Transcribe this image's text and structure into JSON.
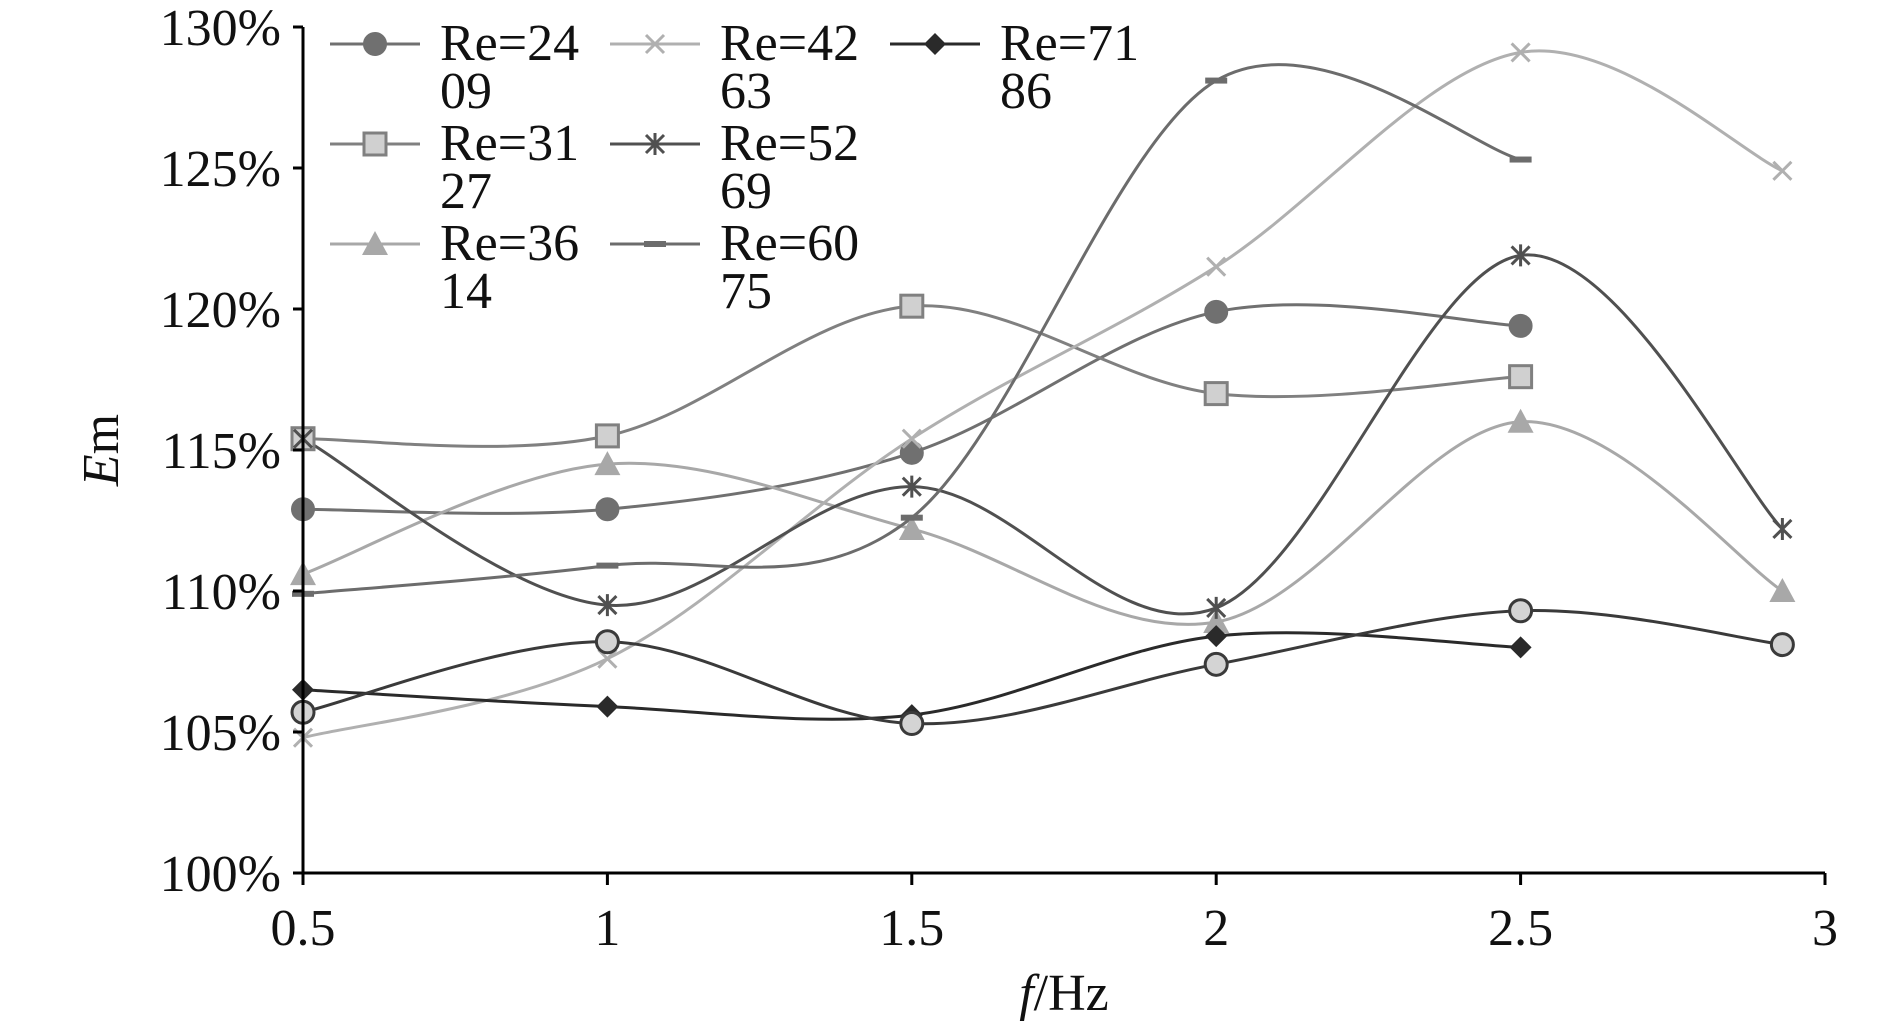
{
  "chart_data": {
    "type": "line",
    "title": "",
    "xlabel_italic": "f",
    "xlabel_rest": "/Hz",
    "ylabel_italic": "E",
    "ylabel_rest": "m",
    "xlim": [
      0.5,
      3
    ],
    "ylim": [
      100,
      130
    ],
    "x_ticks": [
      "0.5",
      "1",
      "1.5",
      "2",
      "2.5",
      "3"
    ],
    "y_ticks": [
      "100%",
      "105%",
      "110%",
      "115%",
      "120%",
      "125%",
      "130%"
    ],
    "legend_position": "top-left",
    "grid": false,
    "series": [
      {
        "name_line1": "Re=24",
        "name_line2": "09",
        "marker": "circle",
        "color": "#707070",
        "points": [
          [
            0.5,
            112.9
          ],
          [
            1,
            112.9
          ],
          [
            1.5,
            114.9
          ],
          [
            2,
            119.9
          ],
          [
            2.5,
            119.4
          ]
        ]
      },
      {
        "name_line1": "Re=31",
        "name_line2": "27",
        "marker": "square",
        "color": "#808080",
        "points": [
          [
            0.5,
            115.4
          ],
          [
            1,
            115.5
          ],
          [
            1.5,
            120.1
          ],
          [
            2,
            117.0
          ],
          [
            2.5,
            117.6
          ]
        ]
      },
      {
        "name_line1": "Re=36",
        "name_line2": "14",
        "marker": "triangle",
        "color": "#a8a8a8",
        "points": [
          [
            0.5,
            110.6
          ],
          [
            1,
            114.5
          ],
          [
            1.5,
            112.2
          ],
          [
            2,
            108.9
          ],
          [
            2.5,
            116.0
          ],
          [
            2.93,
            110.0
          ]
        ]
      },
      {
        "name_line1": "Re=42",
        "name_line2": "63",
        "marker": "x",
        "color": "#b0b0b0",
        "points": [
          [
            0.5,
            104.8
          ],
          [
            1,
            107.6
          ],
          [
            1.5,
            115.4
          ],
          [
            2,
            121.5
          ],
          [
            2.5,
            129.1
          ],
          [
            2.93,
            124.9
          ]
        ]
      },
      {
        "name_line1": "Re=52",
        "name_line2": "69",
        "marker": "asterisk",
        "color": "#505050",
        "points": [
          [
            0.5,
            115.4
          ],
          [
            1,
            109.5
          ],
          [
            1.5,
            113.7
          ],
          [
            2,
            109.4
          ],
          [
            2.5,
            121.9
          ],
          [
            2.93,
            112.2
          ]
        ]
      },
      {
        "name_line1": "Re=60",
        "name_line2": "75",
        "marker": "dash",
        "color": "#6c6c6c",
        "points": [
          [
            0.5,
            109.9
          ],
          [
            1,
            110.9
          ],
          [
            1.5,
            112.6
          ],
          [
            2,
            128.1
          ],
          [
            2.5,
            125.3
          ]
        ]
      },
      {
        "name_line1": "Re=71",
        "name_line2": "86",
        "marker": "diamond",
        "color": "#2a2a2a",
        "points": [
          [
            0.5,
            106.5
          ],
          [
            1,
            105.9
          ],
          [
            1.5,
            105.6
          ],
          [
            2,
            108.4
          ],
          [
            2.5,
            108.0
          ]
        ]
      },
      {
        "name_line1": "",
        "name_line2": "",
        "marker": "open-circle",
        "color": "#3a3a3a",
        "points": [
          [
            0.5,
            105.7
          ],
          [
            1,
            108.2
          ],
          [
            1.5,
            105.3
          ],
          [
            2,
            107.4
          ],
          [
            2.5,
            109.3
          ],
          [
            2.93,
            108.1
          ]
        ]
      }
    ]
  }
}
